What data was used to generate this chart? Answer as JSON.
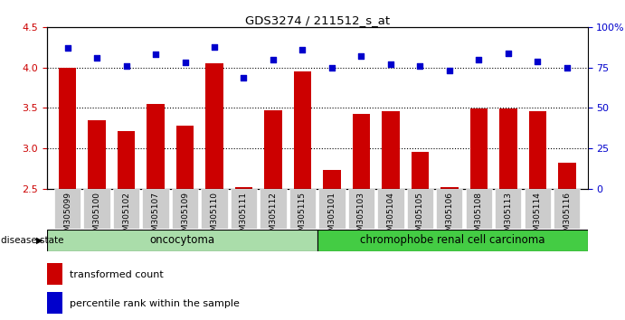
{
  "title": "GDS3274 / 211512_s_at",
  "samples": [
    "GSM305099",
    "GSM305100",
    "GSM305102",
    "GSM305107",
    "GSM305109",
    "GSM305110",
    "GSM305111",
    "GSM305112",
    "GSM305115",
    "GSM305101",
    "GSM305103",
    "GSM305104",
    "GSM305105",
    "GSM305106",
    "GSM305108",
    "GSM305113",
    "GSM305114",
    "GSM305116"
  ],
  "bar_values": [
    4.0,
    3.35,
    3.22,
    3.55,
    3.28,
    4.05,
    2.52,
    3.47,
    3.95,
    2.73,
    3.43,
    3.46,
    2.96,
    2.52,
    3.49,
    3.49,
    3.46,
    2.82
  ],
  "dot_values": [
    87,
    81,
    76,
    83,
    78,
    88,
    69,
    80,
    86,
    75,
    82,
    77,
    76,
    73,
    80,
    84,
    79,
    75
  ],
  "bar_color": "#cc0000",
  "dot_color": "#0000cc",
  "ylim_left": [
    2.5,
    4.5
  ],
  "ylim_right": [
    0,
    100
  ],
  "yticks_left": [
    2.5,
    3.0,
    3.5,
    4.0,
    4.5
  ],
  "yticks_right": [
    0,
    25,
    50,
    75,
    100
  ],
  "ytick_labels_right": [
    "0",
    "25",
    "50",
    "75",
    "100%"
  ],
  "grid_values": [
    3.0,
    3.5,
    4.0
  ],
  "oncocytoma_count": 9,
  "chromophobe_count": 9,
  "oncocytoma_color": "#aaddaa",
  "chromophobe_color": "#44cc44",
  "disease_state_label": "disease state",
  "oncocytoma_label": "oncocytoma",
  "chromophobe_label": "chromophobe renal cell carcinoma",
  "legend_bar_label": "transformed count",
  "legend_dot_label": "percentile rank within the sample"
}
